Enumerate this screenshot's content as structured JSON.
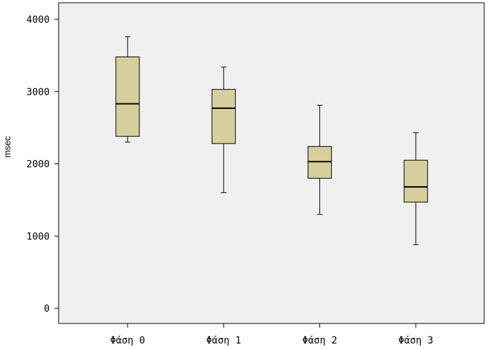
{
  "chart_data": {
    "type": "boxplot",
    "ylabel": "msec",
    "xlabel": "",
    "ylim": [
      -200,
      4250
    ],
    "yticks": [
      0,
      1000,
      2000,
      3000,
      4000
    ],
    "ytick_labels": [
      "0",
      "1000",
      "2000",
      "3000",
      "4000"
    ],
    "categories": [
      "Φάση 0",
      "Φάση 1",
      "Φάση 2",
      "Φάση 3"
    ],
    "boxes": [
      {
        "whisker_low": 2300,
        "q1": 2380,
        "median": 2830,
        "q3": 3480,
        "whisker_high": 3760
      },
      {
        "whisker_low": 1600,
        "q1": 2280,
        "median": 2770,
        "q3": 3030,
        "whisker_high": 3340
      },
      {
        "whisker_low": 1300,
        "q1": 1800,
        "median": 2030,
        "q3": 2240,
        "whisker_high": 2810
      },
      {
        "whisker_low": 880,
        "q1": 1470,
        "median": 1680,
        "q3": 2050,
        "whisker_high": 2430
      }
    ],
    "grid": false,
    "colors": {
      "plot_bg": "#f0f0f0",
      "box_fill": "#d4cf9c",
      "line": "#000000"
    }
  }
}
